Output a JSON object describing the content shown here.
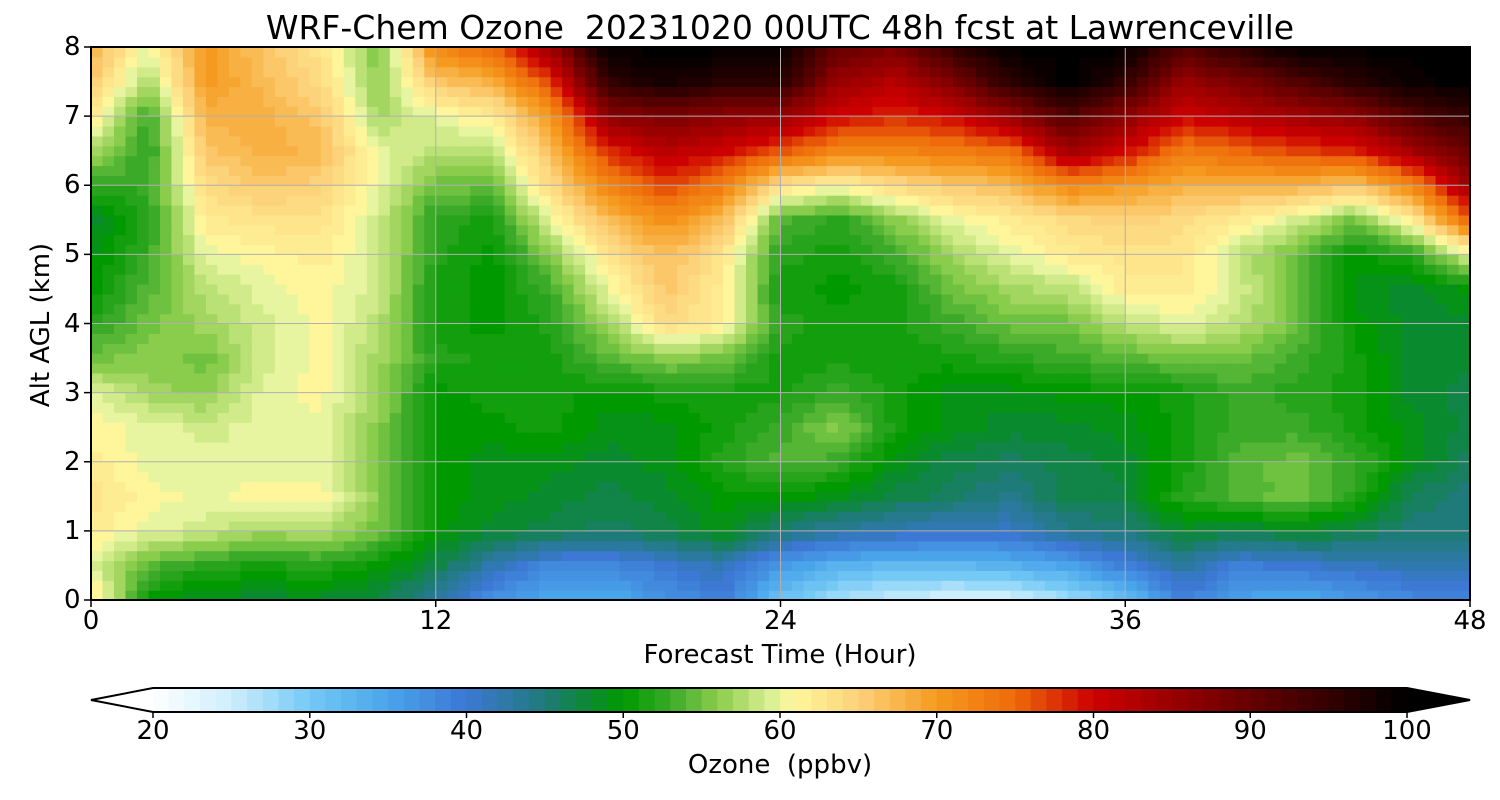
{
  "chart_data": {
    "type": "heatmap",
    "title": "WRF-Chem Ozone  20231020 00UTC 48h fcst at Lawrenceville",
    "xlabel": "Forecast Time (Hour)",
    "ylabel": "Alt AGL (km)",
    "xlim": [
      0,
      48
    ],
    "ylim": [
      0,
      8
    ],
    "x_ticks": [
      "0",
      "12",
      "24",
      "36",
      "48"
    ],
    "y_ticks": [
      "0",
      "1",
      "2",
      "3",
      "4",
      "5",
      "6",
      "7",
      "8"
    ],
    "grid": true,
    "x": [
      0,
      2,
      4,
      6,
      8,
      10,
      12,
      14,
      16,
      18,
      20,
      22,
      24,
      26,
      28,
      30,
      32,
      34,
      36,
      38,
      40,
      42,
      44,
      46,
      48
    ],
    "y": [
      0,
      0.5,
      1,
      1.5,
      2,
      2.5,
      3,
      3.5,
      4,
      4.5,
      5,
      5.5,
      6,
      6.5,
      7,
      7.5,
      8
    ],
    "z": [
      [
        63,
        50,
        48,
        48,
        48,
        47,
        43,
        37,
        34,
        34,
        37,
        39,
        31,
        27,
        25,
        24,
        24,
        27,
        31,
        39,
        35,
        34,
        36,
        38,
        38
      ],
      [
        60,
        54,
        52,
        51,
        52,
        50,
        47,
        42,
        38,
        38,
        40,
        42,
        36,
        33,
        32,
        32,
        33,
        35,
        39,
        43,
        39,
        40,
        41,
        42,
        42
      ],
      [
        62,
        60,
        59,
        57,
        58,
        55,
        50,
        48,
        47,
        46,
        47,
        49,
        45,
        43,
        42,
        41,
        41,
        44,
        45,
        48,
        47,
        48,
        47,
        45,
        45
      ],
      [
        63,
        61,
        60,
        61,
        61,
        56,
        50,
        49,
        48,
        47,
        48,
        50,
        50,
        49,
        47,
        46,
        44,
        47,
        47,
        52,
        54,
        55,
        52,
        46,
        45
      ],
      [
        62,
        60,
        60,
        60,
        60,
        56,
        50,
        49,
        49,
        48,
        49,
        52,
        54,
        53,
        49,
        47,
        46,
        47,
        48,
        51,
        54,
        55,
        53,
        49,
        46
      ],
      [
        61,
        60,
        59,
        60,
        60,
        56,
        50,
        50,
        51,
        49,
        49,
        51,
        53,
        56,
        51,
        49,
        48,
        48,
        49,
        51,
        53,
        53,
        51,
        49,
        47
      ],
      [
        60,
        57,
        56,
        60,
        61,
        57,
        50,
        51,
        51,
        50,
        51,
        51,
        51,
        53,
        51,
        49,
        49,
        50,
        50,
        51,
        53,
        52,
        51,
        48,
        47
      ],
      [
        55,
        56,
        55,
        59,
        61,
        57,
        52,
        51,
        51,
        54,
        56,
        55,
        51,
        51,
        51,
        51,
        52,
        53,
        54,
        55,
        55,
        53,
        51,
        48,
        48
      ],
      [
        52,
        55,
        57,
        59,
        61,
        58,
        51,
        50,
        52,
        57,
        64,
        62,
        52,
        51,
        51,
        53,
        55,
        55,
        58,
        60,
        58,
        55,
        50,
        48,
        48
      ],
      [
        50,
        54,
        58,
        60,
        61,
        59,
        51,
        50,
        53,
        60,
        66,
        62,
        51,
        50,
        51,
        55,
        57,
        58,
        62,
        62,
        59,
        55,
        49,
        48,
        50
      ],
      [
        49,
        53,
        60,
        61,
        62,
        59,
        52,
        50,
        56,
        63,
        67,
        63,
        52,
        51,
        53,
        57,
        60,
        62,
        63,
        63,
        58,
        55,
        50,
        52,
        60
      ],
      [
        48,
        52,
        62,
        63,
        63,
        59,
        52,
        51,
        60,
        67,
        71,
        67,
        54,
        52,
        56,
        60,
        62,
        64,
        65,
        64,
        62,
        59,
        55,
        62,
        75
      ],
      [
        52,
        53,
        64,
        66,
        65,
        60,
        55,
        55,
        64,
        72,
        77,
        73,
        63,
        61,
        64,
        66,
        67,
        72,
        70,
        68,
        68,
        68,
        66,
        72,
        85
      ],
      [
        58,
        52,
        66,
        68,
        67,
        60,
        58,
        58,
        67,
        78,
        82,
        80,
        76,
        72,
        72,
        73,
        74,
        84,
        80,
        73,
        75,
        77,
        78,
        84,
        90
      ],
      [
        62,
        53,
        68,
        68,
        66,
        57,
        60,
        62,
        70,
        86,
        88,
        86,
        85,
        80,
        78,
        80,
        85,
        92,
        86,
        80,
        82,
        84,
        86,
        92,
        95
      ],
      [
        66,
        57,
        70,
        67,
        64,
        56,
        66,
        68,
        77,
        95,
        98,
        96,
        96,
        85,
        82,
        88,
        96,
        100,
        95,
        85,
        88,
        92,
        96,
        99,
        100
      ],
      [
        68,
        60,
        70,
        66,
        63,
        55,
        72,
        75,
        85,
        100,
        100,
        100,
        100,
        90,
        88,
        95,
        100,
        100,
        100,
        92,
        96,
        100,
        100,
        100,
        100
      ]
    ],
    "colorbar": {
      "label": "Ozone  (ppbv)",
      "min": 20,
      "max": 100,
      "ticks": [
        "20",
        "30",
        "40",
        "50",
        "60",
        "70",
        "80",
        "90",
        "100"
      ],
      "extend": "both",
      "colors": [
        {
          "v": 20,
          "c": "#ffffff"
        },
        {
          "v": 25,
          "c": "#cdeefd"
        },
        {
          "v": 30,
          "c": "#74c9f5"
        },
        {
          "v": 35,
          "c": "#4aa4ea"
        },
        {
          "v": 40,
          "c": "#3c78d4"
        },
        {
          "v": 45,
          "c": "#1f7a7a"
        },
        {
          "v": 48,
          "c": "#0a8a2e"
        },
        {
          "v": 50,
          "c": "#009900"
        },
        {
          "v": 53,
          "c": "#3aaa28"
        },
        {
          "v": 56,
          "c": "#8acc4c"
        },
        {
          "v": 60,
          "c": "#e8f5a0"
        },
        {
          "v": 61,
          "c": "#fff59a"
        },
        {
          "v": 65,
          "c": "#fcd27a"
        },
        {
          "v": 70,
          "c": "#f59a1e"
        },
        {
          "v": 75,
          "c": "#ee6a0a"
        },
        {
          "v": 80,
          "c": "#cc0000"
        },
        {
          "v": 90,
          "c": "#660000"
        },
        {
          "v": 100,
          "c": "#000000"
        }
      ]
    }
  }
}
